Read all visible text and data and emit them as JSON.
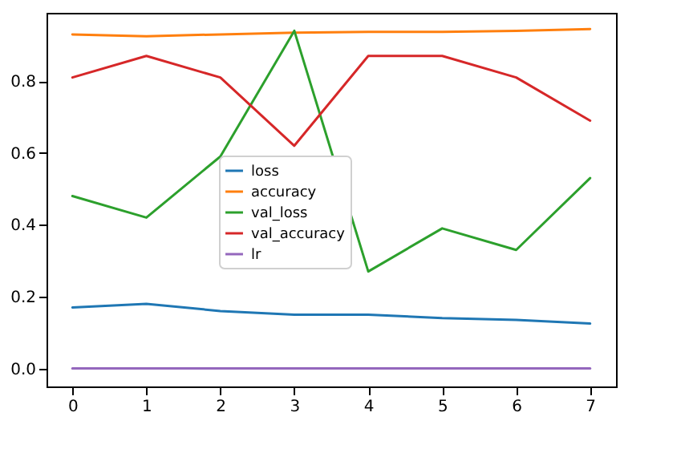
{
  "chart_data": {
    "type": "line",
    "x": [
      0,
      1,
      2,
      3,
      4,
      5,
      6,
      7
    ],
    "series": [
      {
        "name": "loss",
        "color": "#1f77b4",
        "values": [
          0.17,
          0.18,
          0.16,
          0.15,
          0.15,
          0.14,
          0.135,
          0.125
        ]
      },
      {
        "name": "accuracy",
        "color": "#ff7f0e",
        "values": [
          0.93,
          0.925,
          0.93,
          0.935,
          0.937,
          0.937,
          0.94,
          0.945
        ]
      },
      {
        "name": "val_loss",
        "color": "#2ca02c",
        "values": [
          0.48,
          0.42,
          0.59,
          0.94,
          0.27,
          0.39,
          0.33,
          0.53
        ]
      },
      {
        "name": "val_accuracy",
        "color": "#d62728",
        "values": [
          0.81,
          0.87,
          0.81,
          0.62,
          0.87,
          0.87,
          0.81,
          0.69
        ]
      },
      {
        "name": "lr",
        "color": "#9467bd",
        "values": [
          0,
          0,
          0,
          0,
          0,
          0,
          0,
          0
        ]
      }
    ],
    "xlim": [
      -0.35,
      7.35
    ],
    "xticks": [
      0,
      1,
      2,
      3,
      4,
      5,
      6,
      7
    ],
    "ylim": [
      -0.05,
      0.99
    ],
    "yticks": [
      {
        "value": 0,
        "label": "0.0"
      },
      {
        "value": 0.2,
        "label": "0.2"
      },
      {
        "value": 0.4,
        "label": "0.4"
      },
      {
        "value": 0.6,
        "label": "0.6"
      },
      {
        "value": 0.8,
        "label": "0.8"
      }
    ],
    "legend": "center",
    "grid": false,
    "line_style": "solid",
    "marker": "none"
  }
}
